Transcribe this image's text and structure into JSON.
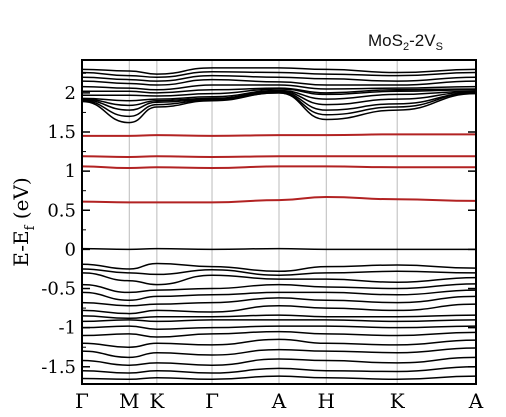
{
  "chart_data": {
    "type": "line",
    "title": {
      "base": "MoS",
      "sub1": "2",
      "mid": "-2V",
      "sub2": "S"
    },
    "ylabel": {
      "main": "E-E",
      "sub": "f",
      "tail": " (eV)"
    },
    "xlabel": "",
    "ylim": [
      -1.72,
      2.42
    ],
    "yticks": [
      {
        "value": -1.5,
        "label": "-1.5"
      },
      {
        "value": -1.0,
        "label": "-1"
      },
      {
        "value": -0.5,
        "label": "-0.5"
      },
      {
        "value": 0.0,
        "label": "0"
      },
      {
        "value": 0.5,
        "label": "0.5"
      },
      {
        "value": 1.0,
        "label": "1"
      },
      {
        "value": 1.5,
        "label": "1.5"
      },
      {
        "value": 2.0,
        "label": "2"
      }
    ],
    "kpoints": [
      {
        "label": "Γ",
        "pos": 0.0
      },
      {
        "label": "M",
        "pos": 0.12
      },
      {
        "label": "K",
        "pos": 0.19
      },
      {
        "label": "Γ",
        "pos": 0.33
      },
      {
        "label": "A",
        "pos": 0.5
      },
      {
        "label": "H",
        "pos": 0.62
      },
      {
        "label": "K",
        "pos": 0.8
      },
      {
        "label": "A",
        "pos": 1.0
      }
    ],
    "grid": "vertical lines at high-symmetry points",
    "legend": "none",
    "colors": {
      "defect_band": "#b22222",
      "band": "#000000",
      "kline": "#bbbbbb"
    },
    "defect_bands": [
      {
        "name": "",
        "values": [
          1.45,
          1.45,
          1.46,
          1.45,
          1.46,
          1.46,
          1.47,
          1.47
        ]
      },
      {
        "name": "",
        "values": [
          1.19,
          1.18,
          1.19,
          1.18,
          1.19,
          1.19,
          1.19,
          1.19
        ]
      },
      {
        "name": "",
        "values": [
          1.06,
          1.04,
          1.05,
          1.04,
          1.06,
          1.06,
          1.05,
          1.05
        ]
      },
      {
        "name": "",
        "values": [
          0.61,
          0.6,
          0.6,
          0.6,
          0.63,
          0.67,
          0.64,
          0.62
        ]
      }
    ],
    "bands": [
      [
        2.3,
        2.28,
        2.24,
        2.32,
        2.32,
        2.3,
        2.26,
        2.3
      ],
      [
        2.26,
        2.22,
        2.2,
        2.27,
        2.26,
        2.24,
        2.22,
        2.26
      ],
      [
        2.2,
        2.17,
        2.15,
        2.22,
        2.2,
        2.18,
        2.15,
        2.2
      ],
      [
        2.15,
        2.12,
        2.1,
        2.17,
        2.14,
        2.1,
        2.1,
        2.15
      ],
      [
        2.08,
        2.06,
        2.04,
        2.1,
        2.1,
        2.05,
        2.06,
        2.08
      ],
      [
        2.02,
        2.02,
        2.0,
        2.04,
        2.06,
        2.0,
        2.04,
        2.05
      ],
      [
        1.97,
        1.97,
        1.96,
        1.99,
        2.05,
        1.98,
        2.02,
        2.04
      ],
      [
        1.93,
        1.9,
        1.92,
        1.95,
        2.03,
        1.92,
        1.98,
        2.02
      ],
      [
        1.92,
        1.84,
        1.9,
        1.93,
        2.02,
        1.85,
        1.92,
        2.01
      ],
      [
        1.91,
        1.78,
        1.88,
        1.92,
        2.01,
        1.78,
        1.86,
        2.0
      ],
      [
        1.9,
        1.7,
        1.85,
        1.91,
        2.0,
        1.72,
        1.82,
        2.0
      ],
      [
        1.89,
        1.62,
        1.82,
        1.9,
        2.0,
        1.66,
        1.78,
        1.99
      ],
      [
        0.01,
        0.0,
        0.01,
        0.0,
        0.01,
        0.0,
        0.0,
        0.0
      ],
      [
        -0.19,
        -0.25,
        -0.18,
        -0.22,
        -0.28,
        -0.22,
        -0.2,
        -0.24
      ],
      [
        -0.25,
        -0.3,
        -0.32,
        -0.26,
        -0.33,
        -0.3,
        -0.28,
        -0.3
      ],
      [
        -0.3,
        -0.4,
        -0.45,
        -0.33,
        -0.38,
        -0.38,
        -0.42,
        -0.36
      ],
      [
        -0.45,
        -0.55,
        -0.52,
        -0.5,
        -0.45,
        -0.48,
        -0.5,
        -0.44
      ],
      [
        -0.55,
        -0.65,
        -0.6,
        -0.58,
        -0.55,
        -0.55,
        -0.58,
        -0.52
      ],
      [
        -0.68,
        -0.72,
        -0.7,
        -0.68,
        -0.62,
        -0.65,
        -0.68,
        -0.6
      ],
      [
        -0.78,
        -0.82,
        -0.78,
        -0.8,
        -0.72,
        -0.75,
        -0.78,
        -0.7
      ],
      [
        -0.85,
        -0.88,
        -0.86,
        -0.86,
        -0.84,
        -0.86,
        -0.86,
        -0.84
      ],
      [
        -0.92,
        -0.9,
        -0.92,
        -0.9,
        -0.9,
        -0.9,
        -0.92,
        -0.9
      ],
      [
        -1.0,
        -0.98,
        -1.02,
        -1.0,
        -0.98,
        -0.98,
        -1.0,
        -0.98
      ],
      [
        -1.1,
        -1.08,
        -1.12,
        -1.08,
        -1.05,
        -1.08,
        -1.1,
        -1.06
      ],
      [
        -1.2,
        -1.25,
        -1.2,
        -1.22,
        -1.15,
        -1.2,
        -1.22,
        -1.16
      ],
      [
        -1.3,
        -1.38,
        -1.32,
        -1.35,
        -1.28,
        -1.3,
        -1.32,
        -1.26
      ],
      [
        -1.42,
        -1.48,
        -1.45,
        -1.48,
        -1.4,
        -1.42,
        -1.45,
        -1.38
      ],
      [
        -1.55,
        -1.58,
        -1.55,
        -1.58,
        -1.52,
        -1.55,
        -1.56,
        -1.5
      ],
      [
        -1.65,
        -1.66,
        -1.64,
        -1.66,
        -1.62,
        -1.64,
        -1.66,
        -1.62
      ]
    ]
  }
}
